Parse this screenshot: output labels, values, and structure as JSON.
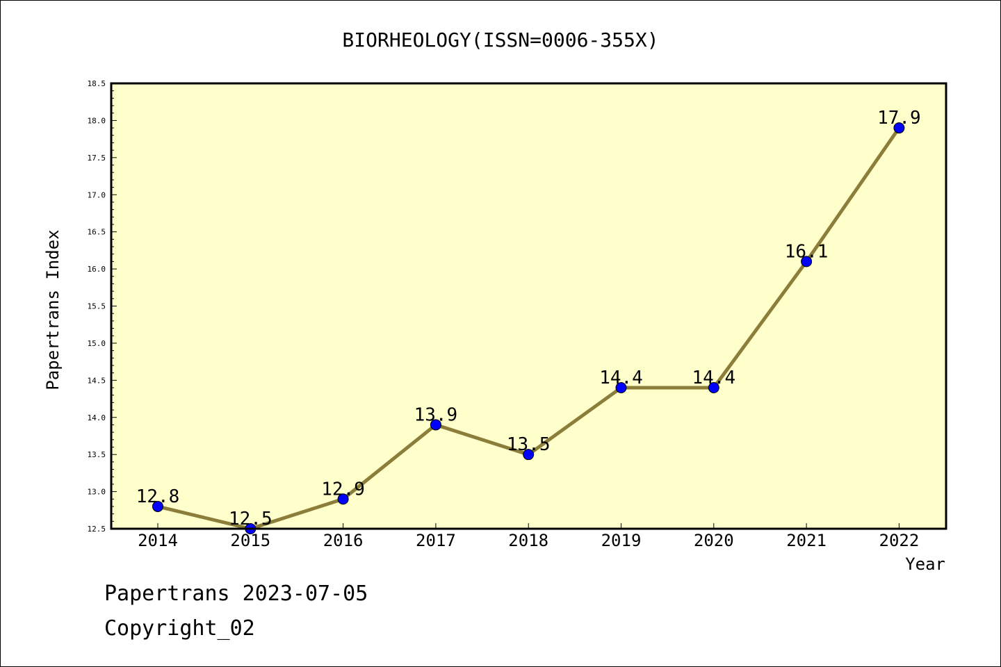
{
  "chart_data": {
    "type": "line",
    "title": "BIORHEOLOGY(ISSN=0006-355X)",
    "xlabel": "Year",
    "ylabel": "Papertrans Index",
    "categories": [
      "2014",
      "2015",
      "2016",
      "2017",
      "2018",
      "2019",
      "2020",
      "2021",
      "2022"
    ],
    "values": [
      12.8,
      12.5,
      12.9,
      13.9,
      13.5,
      14.4,
      14.4,
      16.1,
      17.9
    ],
    "data_labels": [
      "12.8",
      "12.5",
      "12.9",
      "13.9",
      "13.5",
      "14.4",
      "14.4",
      "16.1",
      "17.9"
    ],
    "ylim": [
      12.5,
      18.5
    ],
    "y_ticks": [
      "12.5",
      "13.0",
      "13.5",
      "14.0",
      "14.5",
      "15.0",
      "15.5",
      "16.0",
      "16.5",
      "17.0",
      "17.5",
      "18.0",
      "18.5"
    ],
    "grid": false,
    "colors": {
      "plot_background": "#ffffcc",
      "line": "#8b7d3a",
      "marker": "#0000ff"
    }
  },
  "footer": {
    "line1": "Papertrans 2023-07-05",
    "line2": "Copyright_02"
  }
}
